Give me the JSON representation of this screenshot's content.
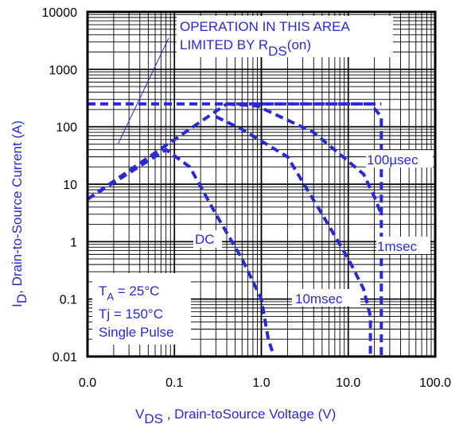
{
  "chart_data": {
    "type": "line",
    "x_scale": "log",
    "y_scale": "log",
    "xlim": [
      0.01,
      100
    ],
    "ylim": [
      0.01,
      10000
    ],
    "x_ticks": [
      {
        "value": 0.01,
        "label": "0.0"
      },
      {
        "value": 0.1,
        "label": "0.1"
      },
      {
        "value": 1,
        "label": "1.0"
      },
      {
        "value": 10,
        "label": "10.0"
      },
      {
        "value": 100,
        "label": "100.0"
      }
    ],
    "y_ticks": [
      {
        "value": 0.01,
        "label": "0.01"
      },
      {
        "value": 0.1,
        "label": "0.1"
      },
      {
        "value": 1,
        "label": "1"
      },
      {
        "value": 10,
        "label": "10"
      },
      {
        "value": 100,
        "label": "100"
      },
      {
        "value": 1000,
        "label": "1000"
      },
      {
        "value": 10000,
        "label": "10000"
      }
    ],
    "xlabel": {
      "main": "V",
      "sub": "DS",
      "rest": " , Drain-toSource Voltage (V)"
    },
    "ylabel": {
      "main": "I",
      "sub": "D",
      "rest": ",  Drain-to-Source Current (A)"
    },
    "grid": true,
    "annotation_limit": {
      "line1": "OPERATION IN THIS AREA",
      "line2_main": "LIMITED BY R",
      "line2_sub": "DS",
      "line2_rest": "(on)"
    },
    "conditions": {
      "ta_main": "T",
      "ta_sub": "A",
      "ta_rest": " = 25°C",
      "tj": "Tj = 150°C",
      "pulse": "Single Pulse"
    },
    "accent_color": "#2929d6",
    "series": [
      {
        "name": "100µsec",
        "x": [
          0.01,
          0.1,
          0.4,
          18,
          24,
          24
        ],
        "y": [
          5.5,
          60,
          250,
          250,
          150,
          0.01
        ]
      },
      {
        "name": "1msec",
        "x": [
          0.4,
          0.9,
          4,
          10,
          15,
          20,
          24
        ],
        "y": [
          250,
          230,
          80,
          25,
          15,
          6,
          3
        ]
      },
      {
        "name": "10msec",
        "x": [
          0.3,
          0.6,
          2,
          5,
          10,
          15,
          18,
          18
        ],
        "y": [
          150,
          90,
          30,
          3,
          0.5,
          0.15,
          0.05,
          0.01
        ]
      },
      {
        "name": "DC",
        "x": [
          0.01,
          0.08,
          0.15,
          0.3,
          0.6,
          1,
          1.2,
          1.4
        ],
        "y": [
          5.5,
          40,
          20,
          3,
          0.5,
          0.1,
          0.02,
          0.01
        ]
      },
      {
        "name": "",
        "x": [
          0.01,
          24
        ],
        "y": [
          250,
          250
        ]
      }
    ],
    "series_labels": [
      "100µsec",
      "1msec",
      "10msec",
      "DC"
    ]
  }
}
